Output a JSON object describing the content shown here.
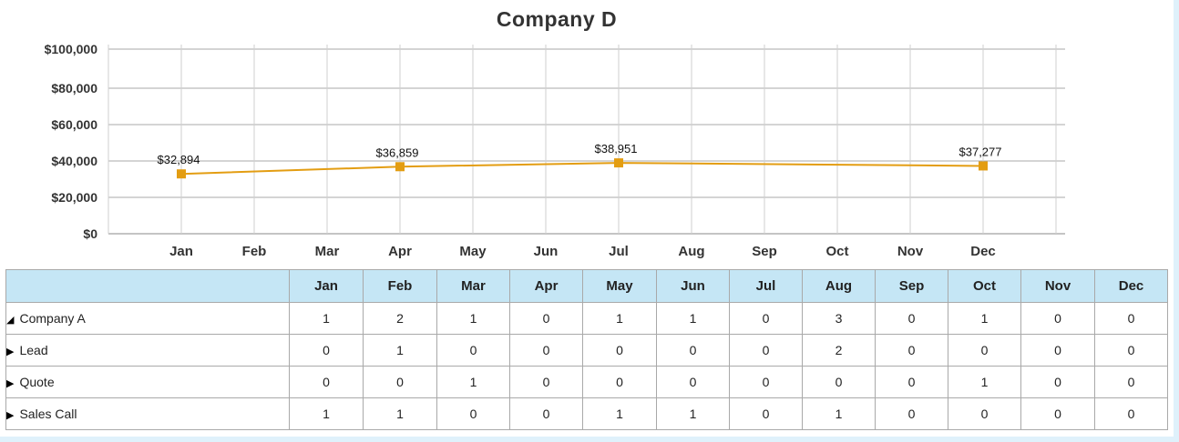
{
  "chart_data": {
    "type": "line",
    "title": "Company D",
    "categories": [
      "Jan",
      "Feb",
      "Mar",
      "Apr",
      "May",
      "Jun",
      "Jul",
      "Aug",
      "Sep",
      "Oct",
      "Nov",
      "Dec"
    ],
    "yticks": [
      "$0",
      "$20,000",
      "$40,000",
      "$60,000",
      "$80,000",
      "$100,000"
    ],
    "ylim": [
      0,
      100000
    ],
    "grid": true,
    "series": [
      {
        "color": "#e39d12",
        "points": [
          {
            "x": "Jan",
            "y": 32894,
            "label": "$32,894"
          },
          {
            "x": "Apr",
            "y": 36859,
            "label": "$36,859"
          },
          {
            "x": "Jul",
            "y": 38951,
            "label": "$38,951"
          },
          {
            "x": "Dec",
            "y": 37277,
            "label": "$37,277"
          }
        ]
      }
    ]
  },
  "table": {
    "months": [
      "Jan",
      "Feb",
      "Mar",
      "Apr",
      "May",
      "Jun",
      "Jul",
      "Aug",
      "Sep",
      "Oct",
      "Nov",
      "Dec"
    ],
    "rows": [
      {
        "label": "Company A",
        "level": 0,
        "expander": "◢",
        "values": [
          "1",
          "2",
          "1",
          "0",
          "1",
          "1",
          "0",
          "3",
          "0",
          "1",
          "0",
          "0"
        ]
      },
      {
        "label": "Lead",
        "level": 1,
        "expander": "▶",
        "values": [
          "0",
          "1",
          "0",
          "0",
          "0",
          "0",
          "0",
          "2",
          "0",
          "0",
          "0",
          "0"
        ]
      },
      {
        "label": "Quote",
        "level": 1,
        "expander": "▶",
        "values": [
          "0",
          "0",
          "1",
          "0",
          "0",
          "0",
          "0",
          "0",
          "0",
          "1",
          "0",
          "0"
        ]
      },
      {
        "label": "Sales Call",
        "level": 1,
        "expander": "▶",
        "values": [
          "1",
          "1",
          "0",
          "0",
          "1",
          "1",
          "0",
          "1",
          "0",
          "0",
          "0",
          "0"
        ]
      }
    ]
  }
}
